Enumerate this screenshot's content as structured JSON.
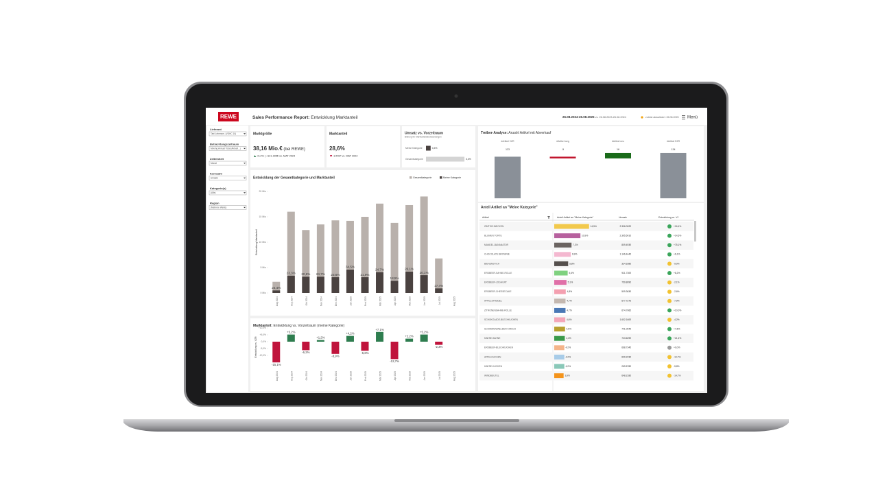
{
  "header": {
    "logo": "REWE",
    "title_bold": "Sales Performance Report:",
    "title_rest": " Entwicklung Marktanteil",
    "period": "26.08.2024-26.08.2025",
    "comparison": " vs. 26.08.2023-26.08.2024",
    "updated": "zuletzt aktualisiert: 26.08.2025",
    "menu": "Menü"
  },
  "filters": [
    {
      "label": "Lieferant",
      "value": "Tabi Lebensm. (VDHC 10)"
    },
    {
      "label": "Betrachtungszeitraum",
      "value": "Moving Annual Total (Aktuell...)"
    },
    {
      "label": "Zeiteinheit",
      "value": "Monat"
    },
    {
      "label": "Kennzahl",
      "value": "Umsatz"
    },
    {
      "label": "Kategorie(n)",
      "value": "(Alle)"
    },
    {
      "label": "Region",
      "value": "(Mehrere Werte)"
    }
  ],
  "kpis": {
    "market_size": {
      "title": "Marktgröße",
      "value": "38,16 Mio.€",
      "suffix": " (bei REWE)",
      "change": "+0,4% | +141.295€ vs. MAT 2024"
    },
    "market_share": {
      "title": "Marktanteil",
      "value": "28,6%",
      "change": "-1,5%P vs. MAT 2024"
    },
    "revenue": {
      "title": "Umsatz vs. Vorzeitraum",
      "subtitle": "Bildung für Marktanteilsbetrachtungen",
      "bars": [
        {
          "name": "Meine Kategorie",
          "value": 0.4,
          "value_label": "0,4%",
          "color": "#4a4240"
        },
        {
          "name": "Gesamtkategorie",
          "value": 3.3,
          "value_label": "3,3%",
          "color": "#d4d4d4"
        }
      ]
    }
  },
  "chart_data": [
    {
      "type": "bar",
      "title": "Entwicklung der Gesamtkategorie und Marktanteil",
      "ylabel": "Entwicklung Marktanteil",
      "categories": [
        "Aug 2024",
        "Sep 2024",
        "Okt 2024",
        "Nov 2024",
        "Dez 2024",
        "Jan 2025",
        "Feb 2025",
        "Mär 2025",
        "Apr 2025",
        "Mai 2025",
        "Jun 2025",
        "Jul 2025",
        "Aug 2025"
      ],
      "series": [
        {
          "name": "Gesamtkategorie",
          "color": "#b9b1ac",
          "values": [
            2.2,
            16,
            12.4,
            13.5,
            14.3,
            14.2,
            15,
            17.6,
            13.8,
            17.3,
            19,
            6.8,
            null
          ]
        },
        {
          "name": "Meine Kategorie",
          "color": "#4a4240",
          "values": [
            0.5,
            3.4,
            3.2,
            3.2,
            3.1,
            4.6,
            3.1,
            4.1,
            2.4,
            4.2,
            3.5,
            0.9,
            null
          ]
        }
      ],
      "market_share": {
        "values": [
          24.4,
          23.3,
          20.6,
          24.7,
          23.6,
          34.5,
          21.9,
          24.7,
          18.5,
          26.1,
          20.1,
          17.4,
          null
        ],
        "value_labels": [
          "24,4%",
          "23,3%",
          "20,6%",
          "24,7%",
          "23,6%",
          "34,5%",
          "21,9%",
          "24,7%",
          "18,5%",
          "26,1%",
          "20,1%",
          "17,4%",
          null
        ]
      },
      "ylim": [
        0,
        20
      ],
      "yticks": [
        {
          "value": 0,
          "label": "0 Mio"
        },
        {
          "value": 5,
          "label": "5 Mio"
        },
        {
          "value": 10,
          "label": "10 Mio"
        },
        {
          "value": 15,
          "label": "15 Mio"
        },
        {
          "value": 20,
          "label": "20 Mio"
        }
      ]
    },
    {
      "type": "diverging",
      "title": "Marktanteil:",
      "title_detail": " Entwicklung vs. Vorzeitraum (meine Kategorie)",
      "ylabel": "Entwicklung vs. VZR",
      "categories": [
        "Aug 2024",
        "Sep 2024",
        "Okt 2024",
        "Nov 2024",
        "Dez 2024",
        "Jan 2025",
        "Feb 2025",
        "Mär 2025",
        "Apr 2025",
        "Mai 2025",
        "Jun 2025",
        "Jul 2025",
        "Aug 2025"
      ],
      "values": [
        -15.1,
        5.2,
        -6.2,
        1.2,
        -8.9,
        4.2,
        -6.6,
        7.1,
        -12.7,
        2.2,
        5.2,
        -2.3,
        null
      ],
      "value_labels": [
        "-15,1%",
        "+5,2%",
        "-6,2%",
        "+1,2%",
        "-8,9%",
        "+4,2%",
        "-6,6%",
        "+7,1%",
        "-12,7%",
        "+2,2%",
        "+5,2%",
        "-2,3%",
        null
      ],
      "positive_color": "#2e7d4f",
      "negative_color": "#c0143c",
      "ylim": [
        -20,
        12
      ],
      "yticks": [
        {
          "value": 10,
          "label": "+10,0%"
        },
        {
          "value": 5,
          "label": "+5,0%"
        },
        {
          "value": 0,
          "label": "0,0%"
        },
        {
          "value": -5,
          "label": "-5,0%"
        },
        {
          "value": -10,
          "label": "-10,0%"
        }
      ]
    },
    {
      "type": "waterfall",
      "title": "Treiber-Analyse:",
      "title_detail": " Anzahl Artikel mit Abverkauf",
      "categories": [
        "#Artikel VZR",
        "#Artikel weg",
        "#Artikel neu",
        "#Artikel EZR"
      ],
      "values": [
        123,
        -5,
        16,
        134
      ],
      "colors": [
        "#8a9098",
        "#c0142c",
        "#1a6b1a",
        "#8a9098"
      ],
      "ylim": [
        0,
        140
      ]
    }
  ],
  "table": {
    "title": "Anteil Artikel an \"Meine Kategorie\"",
    "columns": [
      "Artikel",
      "Anteil Artikel an \"Meine Kategorie\"",
      "Umsatz",
      "Entwicklung vs. VJ"
    ],
    "rows": [
      {
        "name": "ZIMTSCHNECKEN",
        "share": 14.5,
        "share_label": "14,5%",
        "revenue": "2.306.002€",
        "change": 16.4,
        "change_label": "+16,4%",
        "color": "#f2c94c"
      },
      {
        "name": "BLUMEN TORTE",
        "share": 10.9,
        "share_label": "10,9%",
        "revenue": "2.395.501€",
        "change": 14.5,
        "change_label": "+14,5%",
        "color": "#b7619e"
      },
      {
        "name": "MANDEL-BANANATOR",
        "share": 7.2,
        "share_label": "7,2%",
        "revenue": "809.493€",
        "change": 75.1,
        "change_label": "+75,1%",
        "color": "#6b6461"
      },
      {
        "name": "CHOCOLATE BROWNIE",
        "share": 6.9,
        "share_label": "6,9%",
        "revenue": "1.146.444€",
        "change": 6.1,
        "change_label": "+6,1%",
        "color": "#f4b8d0"
      },
      {
        "name": "BIENENSTICH",
        "share": 5.8,
        "share_label": "5,8%",
        "revenue": "324.168€",
        "change": -9.0,
        "change_label": "-9,0%",
        "color": "#55504d"
      },
      {
        "name": "ERDBEER-SAHNE-ROLLE",
        "share": 5.6,
        "share_label": "5,6%",
        "revenue": "921.730€",
        "change": 8.2,
        "change_label": "+8,2%",
        "color": "#7fd17f"
      },
      {
        "name": "ERDBEER-JOGHURT",
        "share": 5.1,
        "share_label": "5,1%",
        "revenue": "759.809€",
        "change": -2.1,
        "change_label": "-2,1%",
        "color": "#e070a8"
      },
      {
        "name": "ERDBEER-CHEESECAKE",
        "share": 4.8,
        "share_label": "4,8%",
        "revenue": "509.363€",
        "change": -2.6,
        "change_label": "-2,6%",
        "color": "#f4a0b0"
      },
      {
        "name": "APFELSTRUDEL",
        "share": 4.7,
        "share_label": "4,7%",
        "revenue": "677.727€",
        "change": -7.9,
        "change_label": "-7,9%",
        "color": "#c4b8b0"
      },
      {
        "name": "ZITRONENSAHNE-ROLLE",
        "share": 4.7,
        "share_label": "4,7%",
        "revenue": "674.706€",
        "change": 10.0,
        "change_label": "+10,0%",
        "color": "#4a78b5"
      },
      {
        "name": "SCHOKOLADE-BLECHKUCHEN",
        "share": 4.6,
        "share_label": "4,6%",
        "revenue": "1.602.160€",
        "change": -4.2,
        "change_label": "-4,2%",
        "color": "#f4a6b8"
      },
      {
        "name": "SCHWARZWAELDER KIRSCH",
        "share": 4.5,
        "share_label": "4,5%",
        "revenue": "741.094€",
        "change": 7.5,
        "change_label": "+7,5%",
        "color": "#b8a030"
      },
      {
        "name": "KAESE-SAHNE",
        "share": 4.4,
        "share_label": "4,4%",
        "revenue": "723.629€",
        "change": 21.4,
        "change_label": "+21,4%",
        "color": "#3a9a4a"
      },
      {
        "name": "ERDBEER-BLECHKUCHEN",
        "share": 4.2,
        "share_label": "4,2%",
        "revenue": "668.734€",
        "change": 0.0,
        "change_label": "+0,0%",
        "color": "#f4b48a"
      },
      {
        "name": "APFELKUCHEN",
        "share": 4.2,
        "share_label": "4,2%",
        "revenue": "609.223€",
        "change": -10.7,
        "change_label": "-10,7%",
        "color": "#a8cce8"
      },
      {
        "name": "KAESE-KUCHEN",
        "share": 4.2,
        "share_label": "4,2%",
        "revenue": "269.578€",
        "change": -5.8,
        "change_label": "-5,8%",
        "color": "#8ac8b8"
      },
      {
        "name": "WINDBEUTEL",
        "share": 3.9,
        "share_label": "3,9%",
        "revenue": "648.218€",
        "change": -14.7,
        "change_label": "-14,7%",
        "color": "#f4941c"
      }
    ]
  }
}
